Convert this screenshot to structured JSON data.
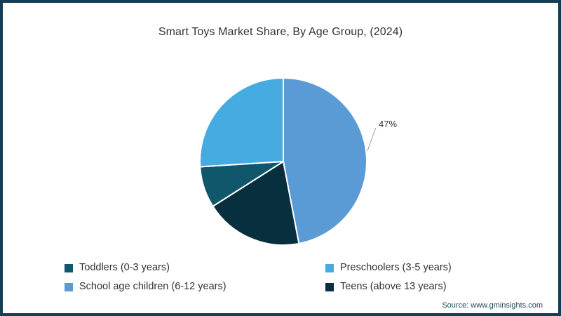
{
  "title": {
    "text": "Smart Toys Market Share, By Age Group, (2024)"
  },
  "chart_data": {
    "type": "pie",
    "title": "Smart Toys Market Share, By Age Group, (2024)",
    "direction": "clockwise",
    "start_angle_deg": 0,
    "legend_position": "bottom",
    "slices": [
      {
        "id": "school-age-children",
        "label": "School age children (6-12 years)",
        "value": 47,
        "color": "#5b9bd5"
      },
      {
        "id": "teens",
        "label": "Teens (above 13 years)",
        "value": 19,
        "color": "#072f3d"
      },
      {
        "id": "toddlers",
        "label": "Toddlers (0-3 years)",
        "value": 8,
        "color": "#10576b"
      },
      {
        "id": "preschoolers",
        "label": "Preschoolers (3-5 years)",
        "value": 26,
        "color": "#45abe0"
      }
    ],
    "datalabel": {
      "text": "47%",
      "slice": "school-age-children"
    }
  },
  "legend": {
    "items": [
      {
        "id": "toddlers",
        "label": "Toddlers (0-3 years)",
        "color": "#10576b"
      },
      {
        "id": "preschoolers",
        "label": "Preschoolers (3-5 years)",
        "color": "#45abe0"
      },
      {
        "id": "school-age-children",
        "label": "School age children (6-12 years)",
        "color": "#5b9bd5"
      },
      {
        "id": "teens",
        "label": "Teens (above 13 years)",
        "color": "#072f3d"
      }
    ]
  },
  "source": {
    "text": "Source: www.gminsights.com"
  },
  "colors": {
    "frame_border": "#123f54",
    "text": "#333333",
    "connector": "#999999"
  }
}
